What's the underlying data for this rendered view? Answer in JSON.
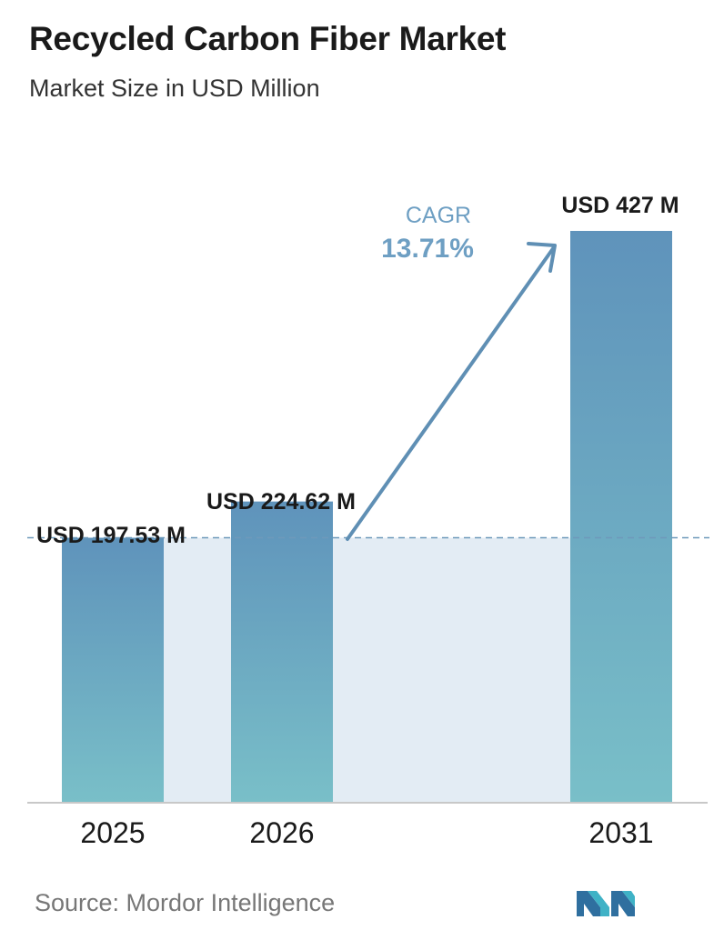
{
  "header": {
    "title": "Recycled Carbon Fiber Market",
    "subtitle": "Market Size in USD Million"
  },
  "chart_data": {
    "type": "bar",
    "title": "Recycled Carbon Fiber Market",
    "subtitle": "Market Size in USD Million",
    "categories": [
      "2025",
      "2026",
      "2031"
    ],
    "values": [
      197.53,
      224.62,
      427
    ],
    "data_labels": [
      "USD 197.53 M",
      "USD 224.62 M",
      "USD 427 M"
    ],
    "unit": "USD Million",
    "xlabel": "",
    "ylabel": "",
    "ylim": [
      0,
      427
    ],
    "grid": false,
    "reference_line": "dashed line at the first bar's value",
    "annotation": {
      "label": "CAGR",
      "value": "13.71%"
    },
    "colors": {
      "bar_top": "#5f93bb",
      "bar_bottom": "#79bfc8",
      "band": "#e3ecf4",
      "arrow": "#5f8fb4",
      "dashed_line": "#6e99ba",
      "cagr_text": "#6e9fc3",
      "axis": "#c8c8c8"
    }
  },
  "footer": {
    "source": "Source:  Mordor Intelligence",
    "logo_icon": "mordor-intelligence-logo-icon"
  }
}
